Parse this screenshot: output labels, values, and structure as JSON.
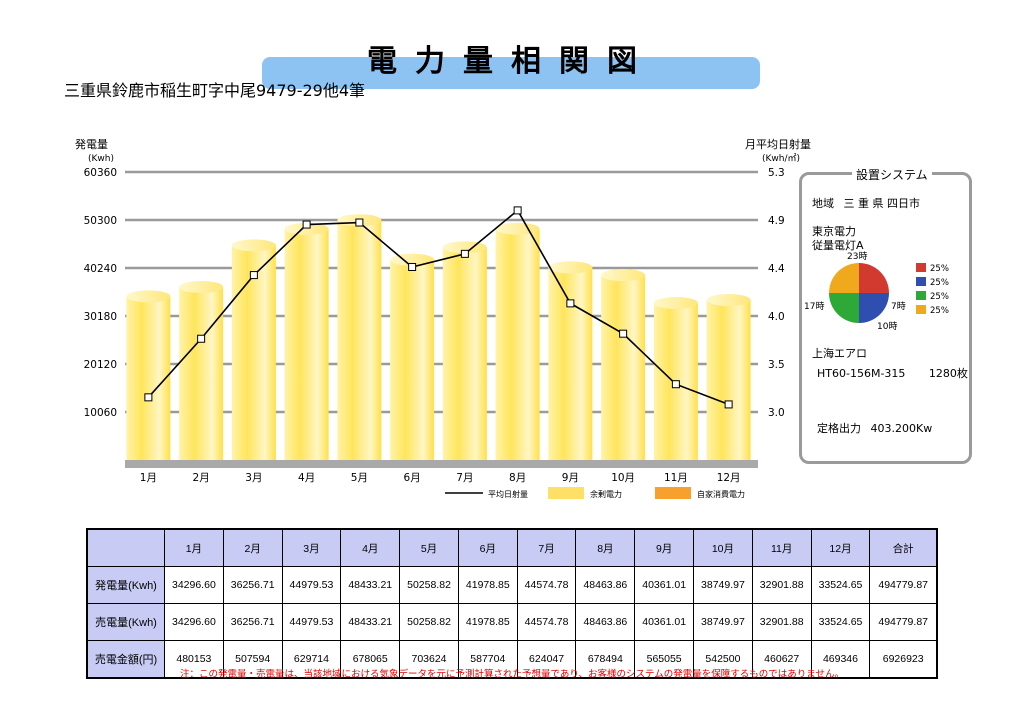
{
  "title": "電力量相関図",
  "address": "三重県鈴鹿市稲生町字中尾9479-29他4筆",
  "chart_data": {
    "type": "bar",
    "left_axis": {
      "label": "発電量",
      "unit": "(Kwh)",
      "ticks": [
        "60360",
        "50300",
        "40240",
        "30180",
        "20120",
        "10060"
      ],
      "range": [
        0,
        60360
      ]
    },
    "right_axis": {
      "label": "月平均日射量",
      "unit": "(Kwh/㎡)",
      "ticks": [
        "5.3",
        "4.9",
        "4.4",
        "4.0",
        "3.5",
        "3.0"
      ],
      "range": [
        2.45,
        5.3
      ]
    },
    "categories": [
      "1月",
      "2月",
      "3月",
      "4月",
      "5月",
      "6月",
      "7月",
      "8月",
      "9月",
      "10月",
      "11月",
      "12月"
    ],
    "series": [
      {
        "name": "余剰電力",
        "kind": "bar",
        "color": "#ffe066",
        "values": [
          34296.6,
          36256.71,
          44979.53,
          48433.21,
          50258.82,
          41978.85,
          44574.78,
          48463.86,
          40361.01,
          38749.97,
          32901.88,
          33524.65
        ]
      },
      {
        "name": "平均日射量",
        "kind": "line",
        "color": "#000000",
        "values": [
          3.07,
          3.65,
          4.28,
          4.78,
          4.8,
          4.36,
          4.49,
          4.92,
          4.0,
          3.7,
          3.2,
          3.0
        ]
      }
    ],
    "legend": [
      {
        "name": "平均日射量",
        "swatch": "line",
        "color": "#000000"
      },
      {
        "name": "余剰電力",
        "swatch": "box",
        "color": "#ffe066"
      },
      {
        "name": "自家消費電力",
        "swatch": "box",
        "color": "#f7a02e"
      }
    ]
  },
  "system": {
    "header": "設置システム",
    "region_label": "地域",
    "region_value": "三 重 県 四日市",
    "utility": "東京電力",
    "plan": "従量電灯A",
    "pie": {
      "labels": {
        "top": "23時",
        "left": "17時",
        "right": "7時",
        "bottom": "10時"
      },
      "slices": [
        {
          "label": "25%",
          "value": 25,
          "color": "#d23a30"
        },
        {
          "label": "25%",
          "value": 25,
          "color": "#2e4fb0"
        },
        {
          "label": "25%",
          "value": 25,
          "color": "#2ea836"
        },
        {
          "label": "25%",
          "value": 25,
          "color": "#f0a91c"
        }
      ]
    },
    "maker": "上海エアロ",
    "model": "HT60-156M-315",
    "panels": "1280枚",
    "rated_label": "定格出力",
    "rated_value": "403.200Kw"
  },
  "table": {
    "headers": [
      "1月",
      "2月",
      "3月",
      "4月",
      "5月",
      "6月",
      "7月",
      "8月",
      "9月",
      "10月",
      "11月",
      "12月",
      "合計"
    ],
    "rows": [
      {
        "label": "発電量(Kwh)",
        "values": [
          "34296.60",
          "36256.71",
          "44979.53",
          "48433.21",
          "50258.82",
          "41978.85",
          "44574.78",
          "48463.86",
          "40361.01",
          "38749.97",
          "32901.88",
          "33524.65",
          "494779.87"
        ]
      },
      {
        "label": "売電量(Kwh)",
        "values": [
          "34296.60",
          "36256.71",
          "44979.53",
          "48433.21",
          "50258.82",
          "41978.85",
          "44574.78",
          "48463.86",
          "40361.01",
          "38749.97",
          "32901.88",
          "33524.65",
          "494779.87"
        ]
      },
      {
        "label": "売電金額(円)",
        "values": [
          "480153",
          "507594",
          "629714",
          "678065",
          "703624",
          "587704",
          "624047",
          "678494",
          "565055",
          "542500",
          "460627",
          "469346",
          "6926923"
        ]
      }
    ]
  },
  "note": "注：この発電量・売電量は、当該地域における気象データを元に予測計算された予想量であり、お客様のシステムの発電量を保障するものではありません。"
}
